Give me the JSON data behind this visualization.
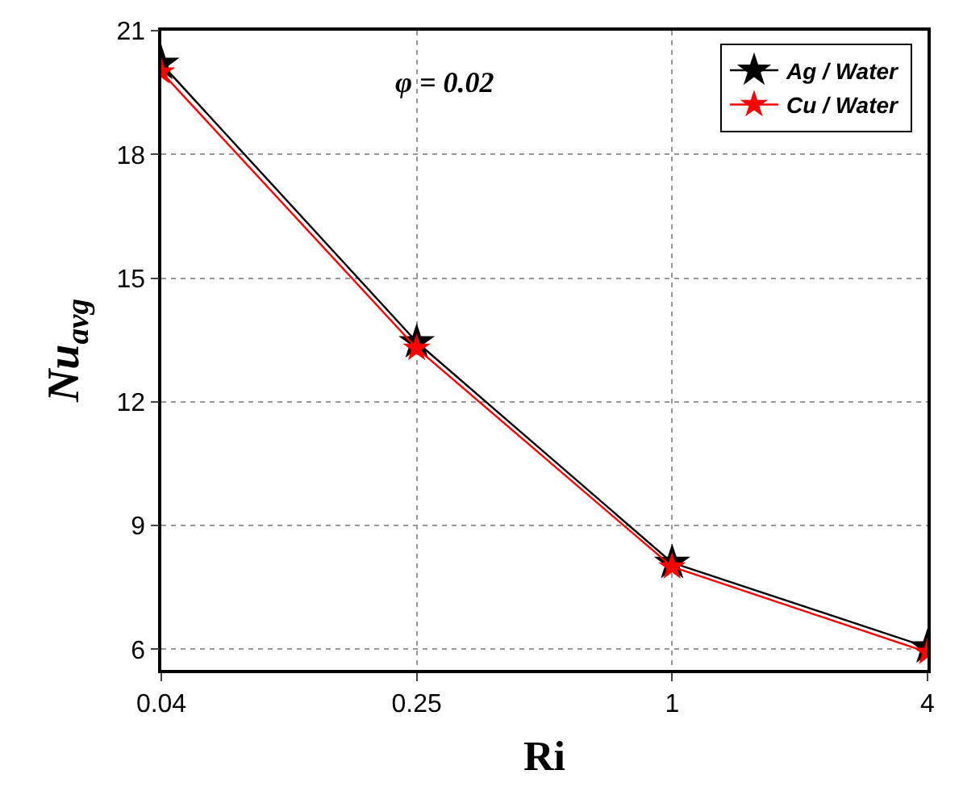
{
  "chart_data": {
    "type": "line",
    "xlabel": "Ri",
    "ylabel": "Nu$_{avg}$",
    "categories": [
      "0.04",
      "0.25",
      "1",
      "4"
    ],
    "series": [
      {
        "name": "Ag / Water",
        "color": "#000000",
        "values": [
          20.2,
          13.45,
          8.1,
          6.05
        ]
      },
      {
        "name": "Cu / Water",
        "color": "#ff0000",
        "values": [
          20.0,
          13.3,
          8.0,
          5.93
        ]
      }
    ],
    "ylim": [
      5.5,
      21
    ],
    "yticks": [
      6,
      9,
      12,
      15,
      18,
      21
    ],
    "annotations": [
      "φ = 0.02"
    ],
    "grid": true,
    "legend": "top right",
    "marker": "star",
    "line_style": "solid"
  }
}
